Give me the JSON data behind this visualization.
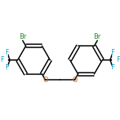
{
  "bg_color": "#ffffff",
  "bond_color": "#000000",
  "br_color": "#228B22",
  "f_color": "#1a9fcc",
  "o_color": "#e06000",
  "figsize": [
    1.52,
    1.52
  ],
  "dpi": 100,
  "line_width": 1.1,
  "font_size": 6.0,
  "r_hex": 0.155,
  "lcx": 0.26,
  "lcy": 0.5,
  "rcx": 0.74,
  "rcy": 0.5,
  "xlim": [
    0.0,
    1.0
  ],
  "ylim": [
    0.18,
    0.82
  ]
}
